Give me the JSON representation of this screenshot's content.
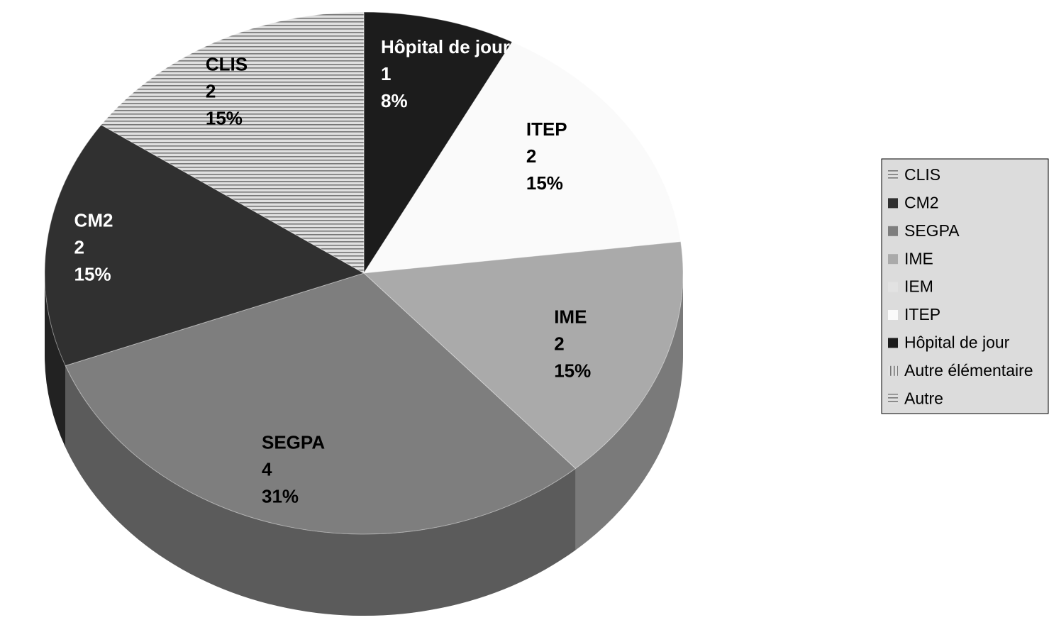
{
  "chart_data": {
    "type": "pie",
    "categories": [
      "CLIS",
      "CM2",
      "SEGPA",
      "IME",
      "IEM",
      "ITEP",
      "Hôpital de jour",
      "Autre élémentaire",
      "Autre"
    ],
    "values": [
      2,
      2,
      4,
      2,
      0,
      2,
      1,
      0,
      0
    ],
    "percent_labels": [
      "15%",
      "15%",
      "31%",
      "15%",
      null,
      "15%",
      "8%",
      null,
      null
    ],
    "colors": [
      "#c8c8c8",
      "#303030",
      "#7e7e7e",
      "#aaaaaa",
      "#e2e2e2",
      "#fafafa",
      "#1c1c1c",
      "#d0d0d0",
      "#e8e8e8"
    ],
    "patterns": [
      "horizontal",
      null,
      null,
      null,
      null,
      null,
      null,
      "vertical",
      "horizontal"
    ],
    "legend": "right"
  }
}
